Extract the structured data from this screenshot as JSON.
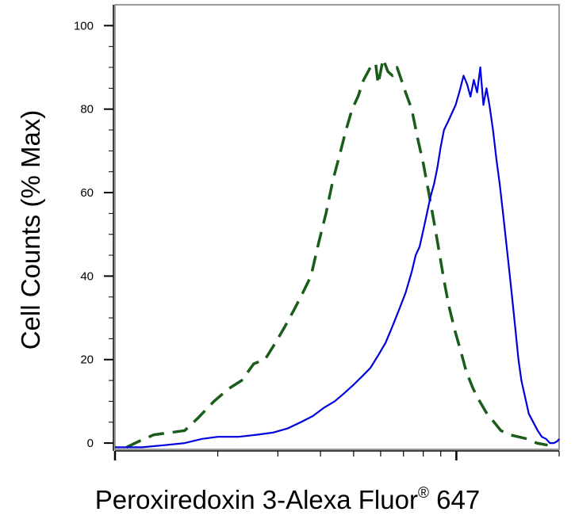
{
  "chart_data": {
    "type": "line",
    "title": "",
    "ylabel": "Cell Counts (% Max)",
    "xlabel_text": "Peroxiredoxin 3-Alexa Fluor",
    "xlabel_sup": "®",
    "xlabel_suffix": " 647",
    "x_scale": "log",
    "xlim": [
      1,
      20
    ],
    "ylim": [
      -1.5,
      105
    ],
    "y_ticks": [
      0,
      20,
      40,
      60,
      80,
      100
    ],
    "y_tick_labels": [
      "0",
      "20",
      "40",
      "60",
      "80",
      "100"
    ],
    "grid": false,
    "legend": "none",
    "series": [
      {
        "style": "dashed",
        "color": "#1a5c1a",
        "points": [
          [
            1.08,
            -1
          ],
          [
            1.18,
            0.5
          ],
          [
            1.3,
            2
          ],
          [
            1.45,
            2.5
          ],
          [
            1.6,
            3
          ],
          [
            1.75,
            6
          ],
          [
            1.95,
            10
          ],
          [
            2.15,
            13
          ],
          [
            2.35,
            15
          ],
          [
            2.55,
            19
          ],
          [
            2.75,
            20
          ],
          [
            2.95,
            24
          ],
          [
            3.15,
            28
          ],
          [
            3.35,
            32
          ],
          [
            3.55,
            36
          ],
          [
            3.75,
            40
          ],
          [
            3.95,
            48
          ],
          [
            4.15,
            55
          ],
          [
            4.35,
            63
          ],
          [
            4.55,
            69
          ],
          [
            4.75,
            75
          ],
          [
            4.95,
            80
          ],
          [
            5.15,
            83
          ],
          [
            5.35,
            87
          ],
          [
            5.6,
            90
          ],
          [
            5.8,
            91
          ],
          [
            5.9,
            86
          ],
          [
            6.1,
            92
          ],
          [
            6.3,
            89
          ],
          [
            6.5,
            88
          ],
          [
            6.7,
            90
          ],
          [
            6.9,
            87
          ],
          [
            7.1,
            84
          ],
          [
            7.4,
            80
          ],
          [
            7.7,
            73
          ],
          [
            8.0,
            67
          ],
          [
            8.3,
            60
          ],
          [
            8.6,
            53
          ],
          [
            8.9,
            46
          ],
          [
            9.2,
            39
          ],
          [
            9.5,
            33
          ],
          [
            9.9,
            27
          ],
          [
            10.3,
            22
          ],
          [
            10.7,
            17
          ],
          [
            11.2,
            13
          ],
          [
            11.7,
            10
          ],
          [
            12.3,
            7
          ],
          [
            12.9,
            5
          ],
          [
            13.5,
            3
          ],
          [
            14.3,
            2
          ],
          [
            15.2,
            1.5
          ],
          [
            16.1,
            1
          ],
          [
            17.2,
            0
          ],
          [
            18.5,
            -0.5
          ]
        ]
      },
      {
        "style": "solid",
        "color": "#0000dd",
        "points": [
          [
            1.0,
            -1
          ],
          [
            1.2,
            -1
          ],
          [
            1.4,
            -0.5
          ],
          [
            1.6,
            0
          ],
          [
            1.8,
            1
          ],
          [
            2.0,
            1.5
          ],
          [
            2.3,
            1.5
          ],
          [
            2.6,
            2
          ],
          [
            2.9,
            2.5
          ],
          [
            3.2,
            3.5
          ],
          [
            3.5,
            5
          ],
          [
            3.8,
            6.5
          ],
          [
            4.1,
            8.5
          ],
          [
            4.4,
            10
          ],
          [
            4.7,
            12
          ],
          [
            5.0,
            14
          ],
          [
            5.3,
            16
          ],
          [
            5.6,
            18
          ],
          [
            5.9,
            21
          ],
          [
            6.2,
            24
          ],
          [
            6.5,
            28
          ],
          [
            6.8,
            32
          ],
          [
            7.1,
            36
          ],
          [
            7.4,
            41
          ],
          [
            7.6,
            45
          ],
          [
            7.8,
            47
          ],
          [
            8.0,
            51
          ],
          [
            8.2,
            55
          ],
          [
            8.4,
            59
          ],
          [
            8.6,
            62
          ],
          [
            8.8,
            66
          ],
          [
            9.0,
            71
          ],
          [
            9.2,
            75
          ],
          [
            9.45,
            77
          ],
          [
            9.7,
            79
          ],
          [
            9.95,
            81
          ],
          [
            10.2,
            84
          ],
          [
            10.5,
            88
          ],
          [
            10.75,
            86
          ],
          [
            11.0,
            83
          ],
          [
            11.25,
            87
          ],
          [
            11.5,
            84
          ],
          [
            11.75,
            90
          ],
          [
            12.0,
            81
          ],
          [
            12.25,
            85
          ],
          [
            12.5,
            81
          ],
          [
            12.8,
            75
          ],
          [
            13.1,
            68
          ],
          [
            13.4,
            62
          ],
          [
            13.7,
            55
          ],
          [
            14.0,
            48
          ],
          [
            14.3,
            41
          ],
          [
            14.6,
            34
          ],
          [
            14.9,
            27
          ],
          [
            15.2,
            20
          ],
          [
            15.5,
            15
          ],
          [
            15.9,
            11
          ],
          [
            16.3,
            7
          ],
          [
            16.8,
            5
          ],
          [
            17.3,
            3
          ],
          [
            17.8,
            1.5
          ],
          [
            18.3,
            1
          ],
          [
            18.8,
            0
          ],
          [
            19.3,
            0
          ],
          [
            19.8,
            0.5
          ],
          [
            20.0,
            1
          ]
        ]
      }
    ]
  }
}
